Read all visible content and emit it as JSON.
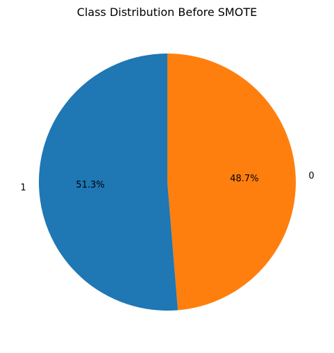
{
  "chart_data": {
    "type": "pie",
    "title": "Class Distribution Before SMOTE",
    "start_angle_deg": 90,
    "direction": "clockwise",
    "slices": [
      {
        "label": "0",
        "value": 48.7,
        "pct_label": "48.7%",
        "color": "#ff7f0e"
      },
      {
        "label": "1",
        "value": 51.3,
        "pct_label": "51.3%",
        "color": "#1f77b4"
      }
    ]
  }
}
